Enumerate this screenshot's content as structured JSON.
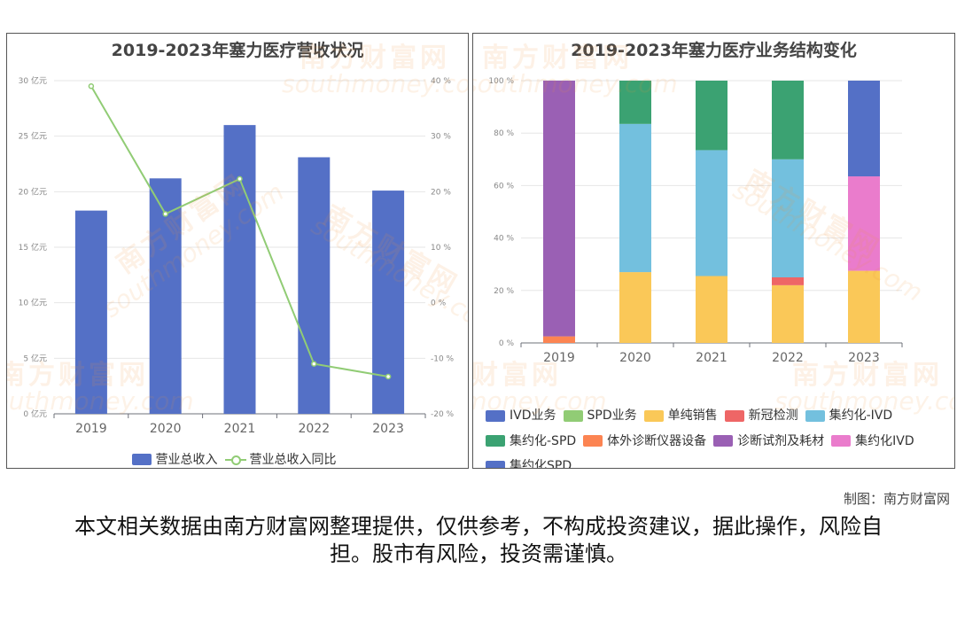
{
  "watermark": {
    "text": "南方财富网",
    "sub": "southmoney.com"
  },
  "credit": "制图：南方财富网",
  "disclaimer": "本文相关数据由南方财富网整理提供，仅供参考，不构成投资建议，据此操作，风险自担。股市有风险，投资需谨慎。",
  "colors": {
    "IVD业务": "#5470c6",
    "SPD业务": "#91cc75",
    "单纯销售": "#fac858",
    "新冠检测": "#ee6666",
    "集约化-IVD": "#73c0de",
    "集约化-SPD": "#3ba272",
    "体外诊断仪器设备": "#fc8452",
    "诊断试剂及耗材": "#9a60b4",
    "集约化IVD": "#ea7ccc",
    "集约化SPD": "#5470c6"
  },
  "chart_data": [
    {
      "type": "bar",
      "title": "2019-2023年塞力医疗营收状况",
      "categories": [
        "2019",
        "2020",
        "2021",
        "2022",
        "2023"
      ],
      "series": [
        {
          "name": "营业总收入",
          "type": "bar",
          "axis": "left",
          "values": [
            18.3,
            21.2,
            26.0,
            23.1,
            20.1
          ]
        },
        {
          "name": "营业总收入同比",
          "type": "line",
          "axis": "right",
          "values": [
            39.0,
            16.0,
            22.3,
            -11.0,
            -13.3
          ]
        }
      ],
      "yleft": {
        "ylim": [
          0,
          30
        ],
        "ticks": [
          "0 亿元",
          "5 亿元",
          "10 亿元",
          "15 亿元",
          "20 亿元",
          "25 亿元",
          "30 亿元"
        ]
      },
      "yright": {
        "ylim": [
          -20,
          40
        ],
        "ticks": [
          "-20 %",
          "-10 %",
          "0 %",
          "10 %",
          "20 %",
          "30 %",
          "40 %"
        ]
      },
      "grid": true,
      "legend": "bottom"
    },
    {
      "type": "bar",
      "stacked": true,
      "title": "2019-2023年塞力医疗业务结构变化",
      "categories": [
        "2019",
        "2020",
        "2021",
        "2022",
        "2023"
      ],
      "series": [
        {
          "name": "体外诊断仪器设备",
          "values": [
            2.5,
            0,
            0,
            0,
            0
          ]
        },
        {
          "name": "诊断试剂及耗材",
          "values": [
            97.5,
            0,
            0,
            0,
            0
          ]
        },
        {
          "name": "单纯销售",
          "values": [
            0,
            27,
            25.5,
            22,
            27.5
          ]
        },
        {
          "name": "新冠检测",
          "values": [
            0,
            0,
            0,
            3,
            0
          ]
        },
        {
          "name": "集约化-IVD",
          "values": [
            0,
            56.5,
            48,
            45,
            0
          ]
        },
        {
          "name": "集约化-SPD",
          "values": [
            0,
            16.5,
            26.5,
            30,
            0
          ]
        },
        {
          "name": "集约化IVD",
          "values": [
            0,
            0,
            0,
            0,
            36
          ]
        },
        {
          "name": "集约化SPD",
          "values": [
            0,
            0,
            0,
            0,
            36.5
          ]
        }
      ],
      "legend_entries": [
        "IVD业务",
        "SPD业务",
        "单纯销售",
        "新冠检测",
        "集约化-IVD",
        "集约化-SPD",
        "体外诊断仪器设备",
        "诊断试剂及耗材",
        "集约化IVD",
        "集约化SPD"
      ],
      "ylim": [
        0,
        100
      ],
      "yticks": [
        "0 %",
        "20 %",
        "40 %",
        "60 %",
        "80 %",
        "100 %"
      ],
      "grid": true,
      "legend": "bottom"
    }
  ]
}
